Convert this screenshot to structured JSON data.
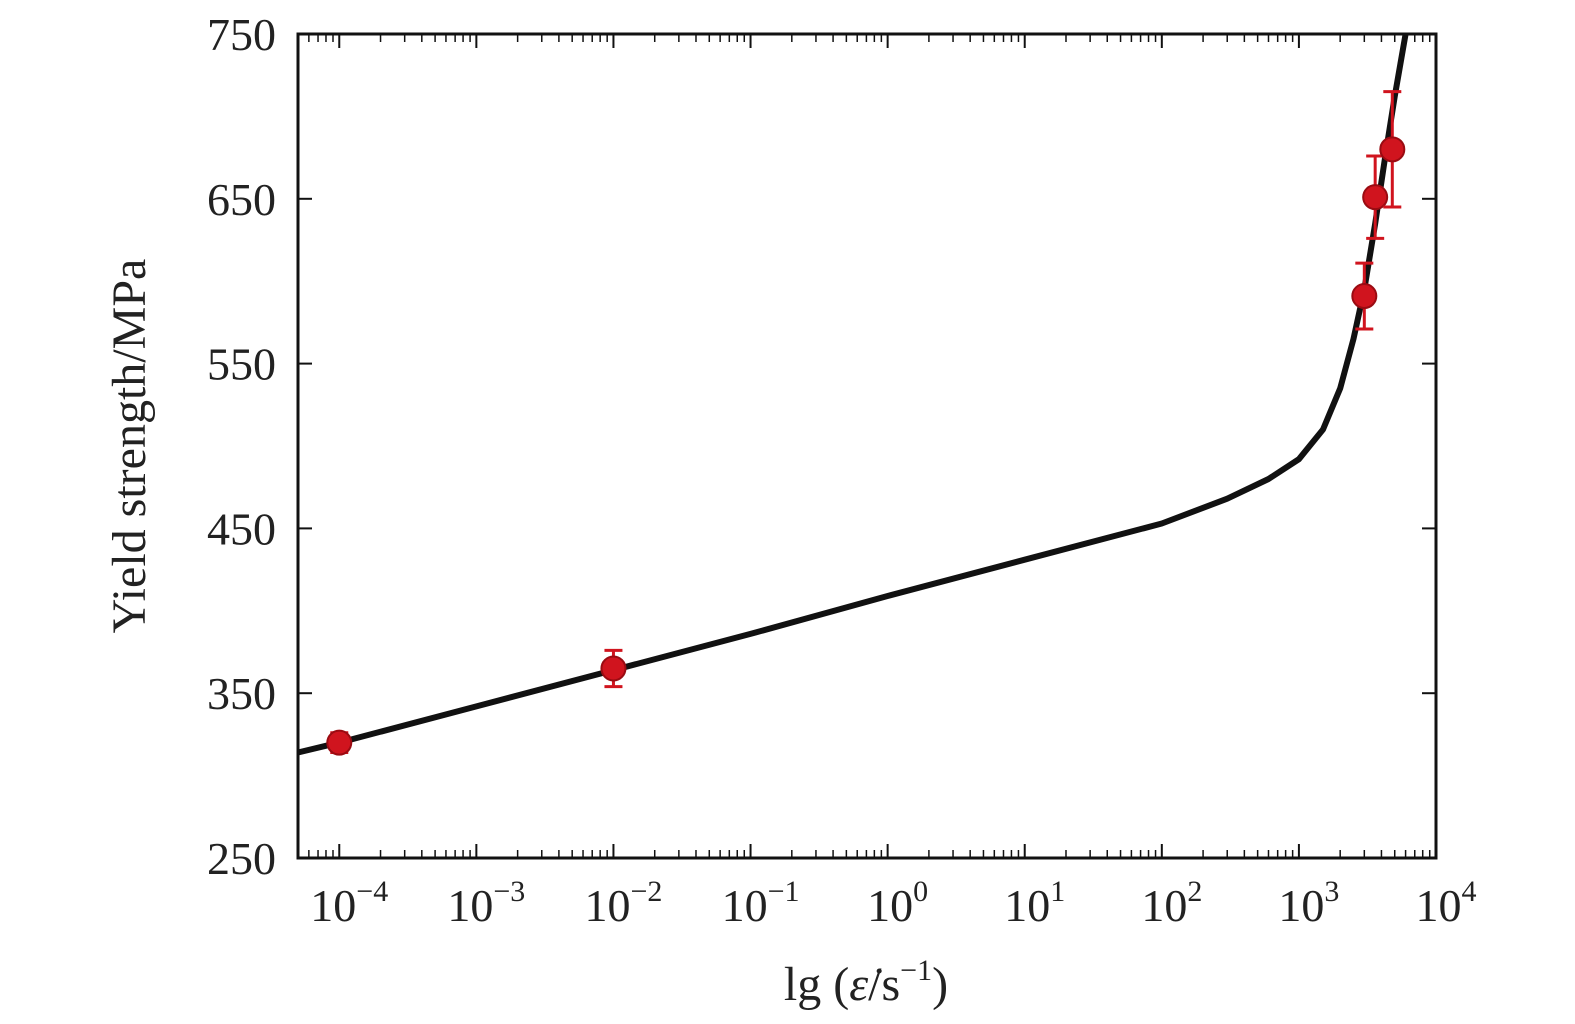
{
  "chart_data": {
    "type": "scatter",
    "title": "",
    "xlabel_prefix": "lg (",
    "xlabel_var": "ε̇",
    "xlabel_unit_base": "/s",
    "xlabel_unit_exp": "−1",
    "xlabel_suffix": ")",
    "ylabel": "Yield strength/MPa",
    "xscale": "log",
    "xlim": [
      5e-05,
      10000
    ],
    "ylim": [
      250,
      750
    ],
    "x_ticks": [
      0.0001,
      0.001,
      0.01,
      0.1,
      1,
      10,
      100,
      1000,
      10000
    ],
    "x_tick_labels": [
      {
        "base": "10",
        "exp": "−4"
      },
      {
        "base": "10",
        "exp": "−3"
      },
      {
        "base": "10",
        "exp": "−2"
      },
      {
        "base": "10",
        "exp": "−1"
      },
      {
        "base": "10",
        "exp": "0"
      },
      {
        "base": "10",
        "exp": "1"
      },
      {
        "base": "10",
        "exp": "2"
      },
      {
        "base": "10",
        "exp": "3"
      },
      {
        "base": "10",
        "exp": "4"
      }
    ],
    "y_ticks": [
      250,
      350,
      450,
      550,
      650,
      750
    ],
    "y_tick_labels": [
      "250",
      "350",
      "450",
      "550",
      "650",
      "750"
    ],
    "grid": false,
    "series": [
      {
        "kind": "points",
        "color": "#d0141e",
        "points": [
          {
            "x": 0.0001,
            "y": 320,
            "err": 6
          },
          {
            "x": 0.01,
            "y": 365,
            "err": 11
          },
          {
            "x": 3000,
            "y": 591,
            "err": 20
          },
          {
            "x": 3600,
            "y": 651,
            "err": 25
          },
          {
            "x": 4800,
            "y": 680,
            "err": 35
          }
        ]
      },
      {
        "kind": "fit-curve",
        "color": "#111111",
        "points": [
          {
            "x": 5e-05,
            "y": 314
          },
          {
            "x": 0.0001,
            "y": 320
          },
          {
            "x": 0.001,
            "y": 342
          },
          {
            "x": 0.01,
            "y": 364
          },
          {
            "x": 0.1,
            "y": 386
          },
          {
            "x": 1,
            "y": 409
          },
          {
            "x": 10,
            "y": 431
          },
          {
            "x": 100,
            "y": 453
          },
          {
            "x": 300,
            "y": 468
          },
          {
            "x": 600,
            "y": 480
          },
          {
            "x": 1000,
            "y": 492
          },
          {
            "x": 1500,
            "y": 510
          },
          {
            "x": 2000,
            "y": 535
          },
          {
            "x": 2500,
            "y": 565
          },
          {
            "x": 3000,
            "y": 595
          },
          {
            "x": 3600,
            "y": 635
          },
          {
            "x": 4300,
            "y": 678
          },
          {
            "x": 5000,
            "y": 712
          },
          {
            "x": 6000,
            "y": 750
          }
        ]
      }
    ]
  }
}
